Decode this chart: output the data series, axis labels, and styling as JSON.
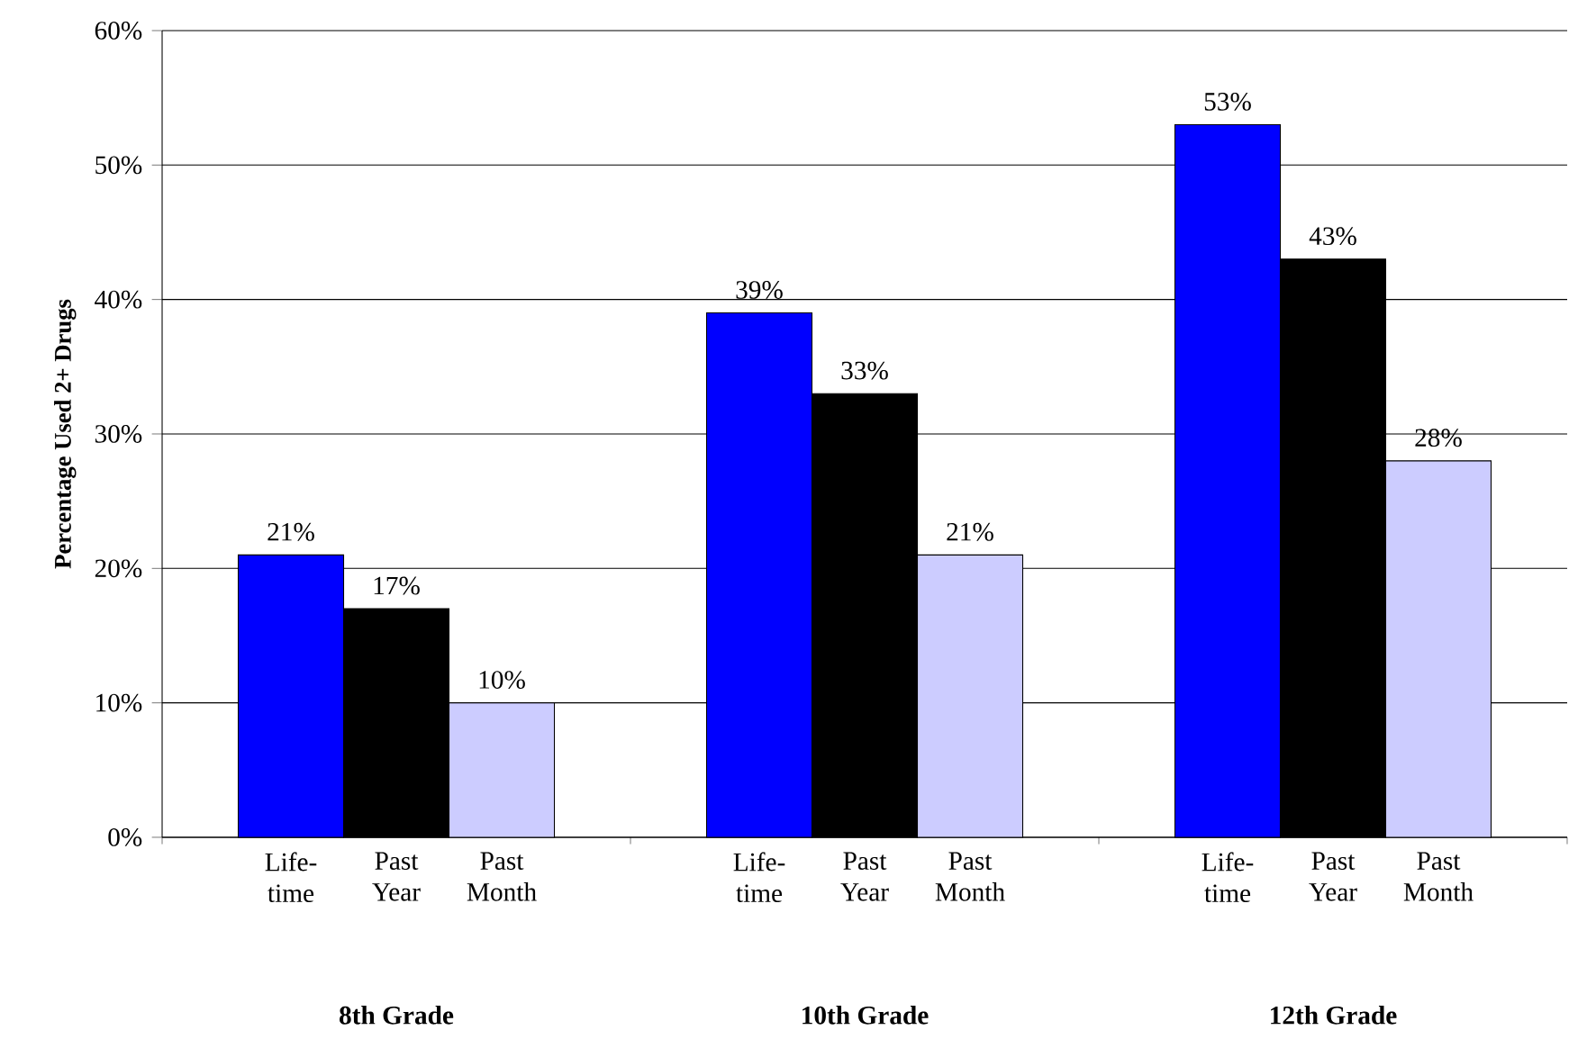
{
  "chart_data": {
    "type": "bar",
    "ylabel": "Percentage Used 2+ Drugs",
    "categories": [
      "8th Grade",
      "10th Grade",
      "12th Grade"
    ],
    "series": [
      {
        "name": "Life- time",
        "color": "#0000ff",
        "values": [
          21,
          39,
          53
        ],
        "value_labels": [
          "21%",
          "39%",
          "53%"
        ]
      },
      {
        "name": "Past Year",
        "color": "#000000",
        "values": [
          17,
          33,
          43
        ],
        "value_labels": [
          "17%",
          "33%",
          "43%"
        ]
      },
      {
        "name": "Past Month",
        "color": "#ccccff",
        "values": [
          10,
          21,
          28
        ],
        "value_labels": [
          "10%",
          "21%",
          "28%"
        ]
      }
    ],
    "ylim": [
      0,
      60
    ],
    "yticks": [
      {
        "value": 0,
        "label": "0%"
      },
      {
        "value": 10,
        "label": "10%"
      },
      {
        "value": 20,
        "label": "20%"
      },
      {
        "value": 30,
        "label": "30%"
      },
      {
        "value": 40,
        "label": "40%"
      },
      {
        "value": 50,
        "label": "50%"
      },
      {
        "value": 60,
        "label": "60%"
      }
    ],
    "grid": "y",
    "legend": false
  }
}
